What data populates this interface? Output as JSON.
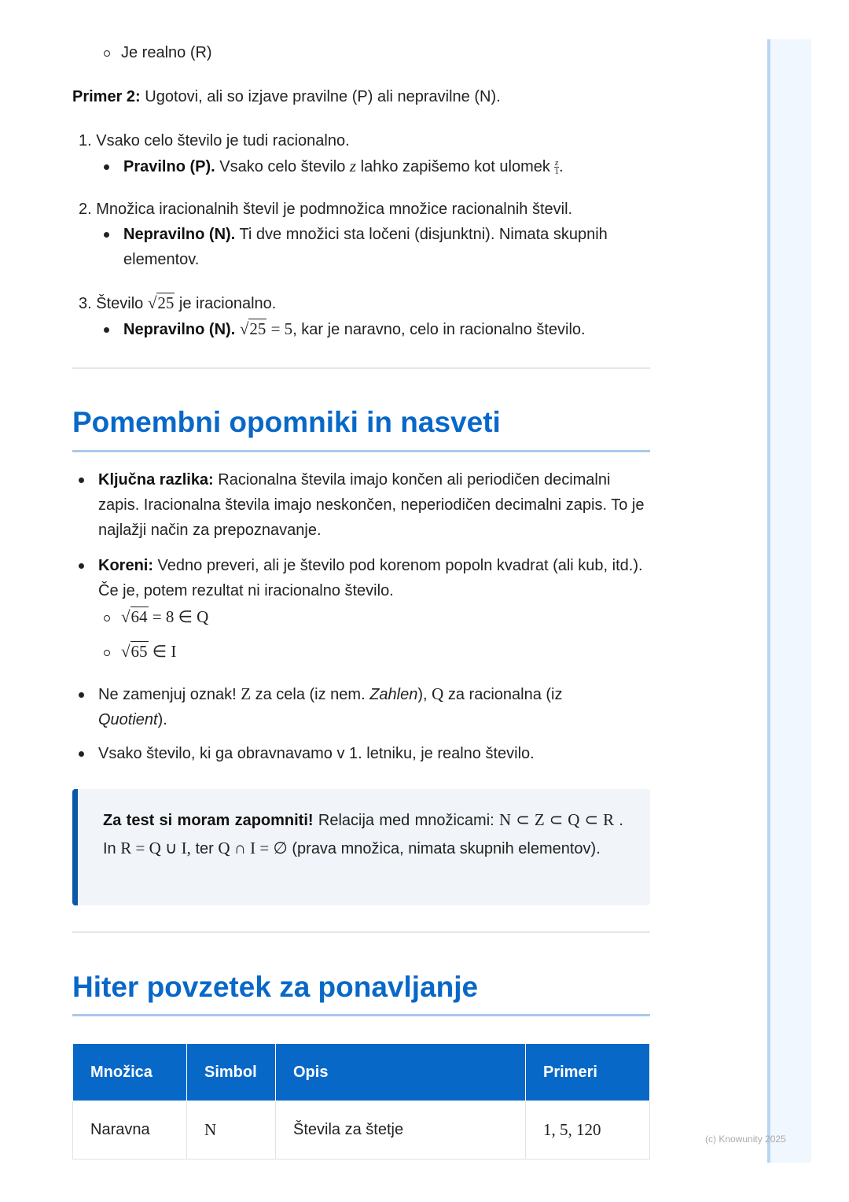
{
  "top_item": "Je realno (R)",
  "example": {
    "label": "Primer 2:",
    "text": " Ugotovi, ali so izjave pravilne (P) ali nepravilne (N).",
    "items": [
      {
        "statement": "1. Vsako celo število je tudi racionalno.",
        "verdict": "Pravilno (P).",
        "expl_a": " Vsako celo število ",
        "var": "z",
        "expl_b": " lahko zapišemo kot ulomek ",
        "frac_num": "z",
        "frac_den": "1",
        "expl_c": "."
      },
      {
        "statement": "2. Množica iracionalnih števil je podmnožica množice racionalnih števil.",
        "verdict": "Nepravilno (N).",
        "expl": " Ti dve množici sta ločeni (disjunktni). Nimata skupnih elementov."
      },
      {
        "statement_a": "3. Število ",
        "sqrt": "25",
        "statement_b": " je iracionalno.",
        "verdict": "Nepravilno (N).",
        "math": " = 5",
        "expl": ", kar je naravno, celo in racionalno število."
      }
    ]
  },
  "section1": {
    "title": "Pomembni opomniki in nasveti",
    "b1_label": "Ključna razlika:",
    "b1_text": " Racionalna števila imajo končen ali periodičen decimalni zapis. Iracionalna števila imajo neskončen, neperiodičen decimalni zapis. To je najlažji način za prepoznavanje.",
    "b2_label": "Koreni:",
    "b2_text": " Vedno preveri, ali je število pod korenom popoln kvadrat (ali kub, itd.). Če je, potem rezultat ni iracionalno število.",
    "sub1_sqrt": "64",
    "sub1_rest": " = 8 ∈ Q",
    "sub2_sqrt": "65",
    "sub2_rest": " ∈ I",
    "b3_a": "Ne zamenjuj oznak! ",
    "b3_z": "Z",
    "b3_b": " za cela (iz nem. ",
    "b3_zi": "Zahlen",
    "b3_c": "), ",
    "b3_q": "Q",
    "b3_d": " za racionalna (iz ",
    "b3_qi": "Quotient",
    "b3_e": ").",
    "b4": "Vsako število, ki ga obravnavamo v 1. letniku, je realno število."
  },
  "callout": {
    "label": "Za test si moram zapomniti!",
    "a": " Relacija med množicami: ",
    "m1": "N ⊂ Z ⊂ Q ⊂ R",
    "b": " . In ",
    "m2": "R = Q ∪ I,",
    "c": " ter ",
    "m3": "Q ∩ I = ∅",
    "d": " (prava množica, nimata skupnih elementov)."
  },
  "section2": {
    "title": "Hiter povzetek za ponavljanje",
    "headers": [
      "Množica",
      "Simbol",
      "Opis",
      "Primeri"
    ],
    "rows": [
      [
        "Naravna",
        "N",
        "Števila za štetje",
        "1, 5, 120"
      ]
    ]
  },
  "watermark": "(c) Knowunity 2025",
  "colors": {
    "accent": "#0868c8",
    "callout_bar": "#0b57a8"
  }
}
